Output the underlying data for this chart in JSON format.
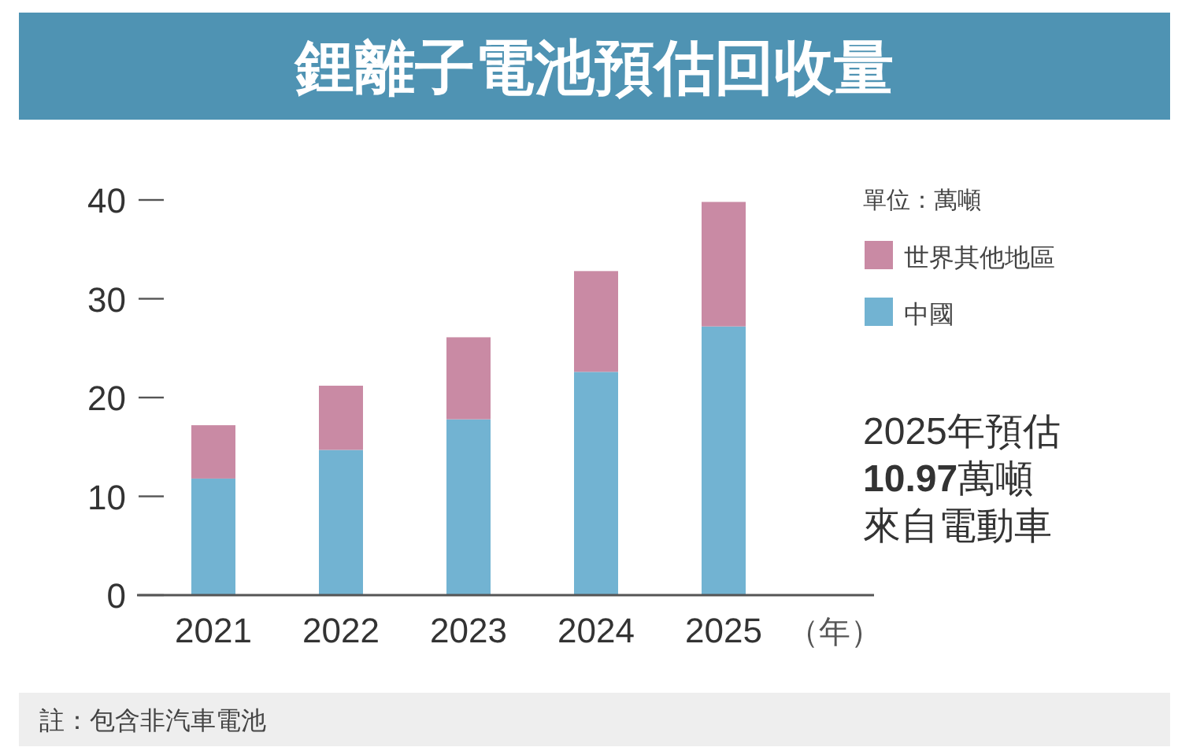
{
  "chart_data": {
    "type": "bar",
    "stacked": true,
    "title": "鋰離子電池預估回收量",
    "xlabel": "（年）",
    "legend_title": "單位：萬噸",
    "categories": [
      "2021",
      "2022",
      "2023",
      "2024",
      "2025"
    ],
    "series": [
      {
        "name": "中國",
        "color": "#72b3d2",
        "values": [
          11.8,
          14.7,
          17.8,
          22.6,
          27.2
        ]
      },
      {
        "name": "世界其他地區",
        "color": "#c98aa4",
        "values": [
          5.4,
          6.5,
          8.3,
          10.2,
          12.6
        ]
      }
    ],
    "ylim": [
      0,
      40
    ],
    "yticks": [
      0,
      10,
      20,
      30,
      40
    ],
    "grid": false,
    "legend": "top right",
    "annotations": [
      "2025年預估",
      "10.97萬噸",
      "來自電動車",
      "註：包含非汽車電池"
    ]
  }
}
